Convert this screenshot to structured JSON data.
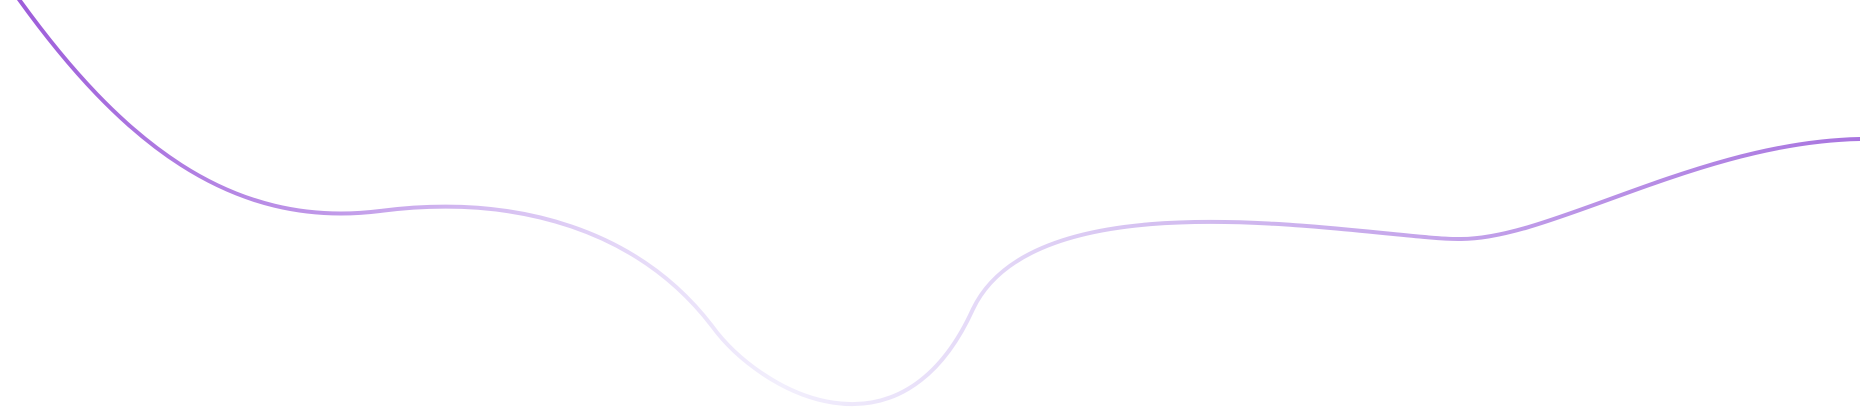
{
  "decoration": {
    "icon": "wave-line",
    "gradient_colors": {
      "start": "#9b59d9",
      "mid": "#e8e2fb",
      "end": "#a874df"
    }
  }
}
